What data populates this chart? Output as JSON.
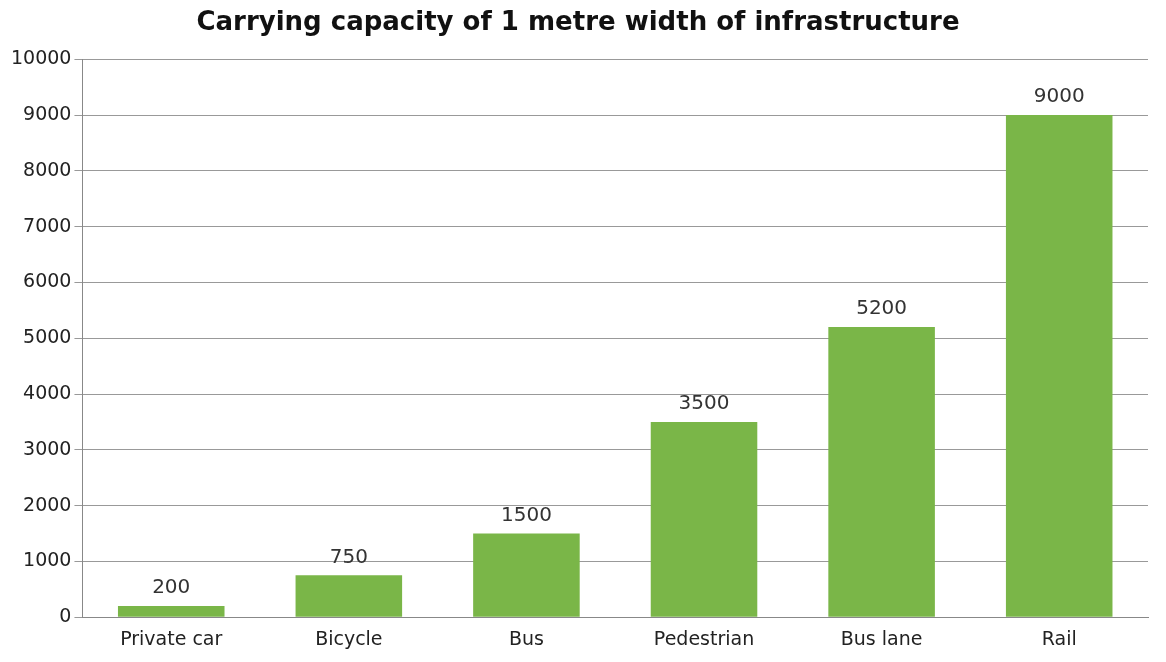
{
  "chart_data": {
    "type": "bar",
    "title": "Carrying capacity of 1 metre width of infrastructure",
    "categories": [
      "Private car",
      "Bicycle",
      "Bus",
      "Pedestrian",
      "Bus lane",
      "Rail"
    ],
    "values": [
      200,
      750,
      1500,
      3500,
      5200,
      9000
    ],
    "color": "#7ab648",
    "ylim": [
      0,
      10000
    ],
    "yticks": [
      0,
      1000,
      2000,
      3000,
      4000,
      5000,
      6000,
      7000,
      8000,
      9000,
      10000
    ],
    "grid": "y",
    "data_labels": true
  }
}
